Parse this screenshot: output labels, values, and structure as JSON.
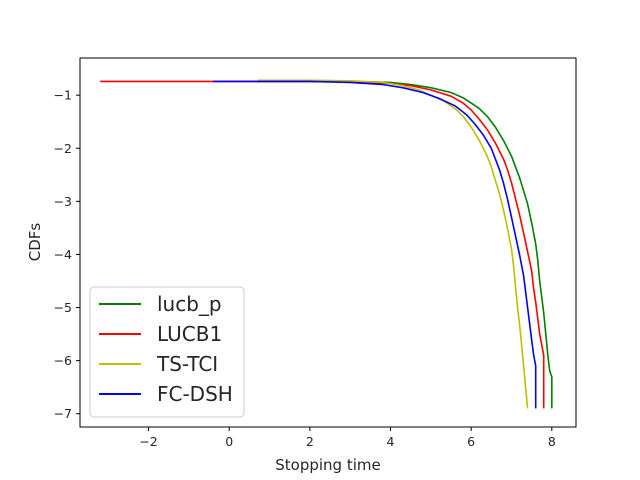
{
  "chart_data": {
    "type": "line",
    "title": "",
    "xlabel": "Stopping time",
    "ylabel": "CDFs",
    "xlim": [
      -3.7,
      8.6
    ],
    "ylim": [
      -7.25,
      -0.3
    ],
    "xticks": [
      -2,
      0,
      2,
      4,
      6,
      8
    ],
    "yticks": [
      -1,
      -2,
      -3,
      -4,
      -5,
      -6,
      -7
    ],
    "grid": false,
    "legend_position": "lower-left",
    "series": [
      {
        "name": "lucb_p",
        "color": "#008000",
        "x": [
          0.7,
          2.0,
          3.0,
          4.0,
          4.5,
          5.0,
          5.5,
          5.8,
          6.0,
          6.2,
          6.4,
          6.6,
          6.8,
          7.0,
          7.1,
          7.2,
          7.3,
          7.4,
          7.5,
          7.6,
          7.65,
          7.7,
          7.75,
          7.8,
          7.85,
          7.9,
          7.95,
          8.0,
          8.0
        ],
        "y": [
          -0.74,
          -0.74,
          -0.74,
          -0.76,
          -0.8,
          -0.86,
          -0.95,
          -1.05,
          -1.15,
          -1.25,
          -1.4,
          -1.6,
          -1.85,
          -2.15,
          -2.35,
          -2.55,
          -2.8,
          -3.05,
          -3.4,
          -3.8,
          -4.1,
          -4.5,
          -4.8,
          -5.1,
          -5.5,
          -5.9,
          -6.2,
          -6.3,
          -6.9
        ]
      },
      {
        "name": "LUCB1",
        "color": "#ff0000",
        "x": [
          -3.2,
          0.0,
          2.0,
          3.0,
          4.0,
          4.5,
          5.0,
          5.5,
          5.8,
          6.0,
          6.2,
          6.4,
          6.6,
          6.8,
          6.9,
          7.0,
          7.1,
          7.2,
          7.3,
          7.4,
          7.5,
          7.55,
          7.6,
          7.65,
          7.7,
          7.75,
          7.8,
          7.8
        ],
        "y": [
          -0.74,
          -0.74,
          -0.74,
          -0.75,
          -0.78,
          -0.82,
          -0.9,
          -1.02,
          -1.15,
          -1.28,
          -1.45,
          -1.65,
          -1.9,
          -2.2,
          -2.4,
          -2.65,
          -2.95,
          -3.25,
          -3.6,
          -3.95,
          -4.3,
          -4.65,
          -4.9,
          -5.2,
          -5.5,
          -5.7,
          -5.9,
          -6.9
        ]
      },
      {
        "name": "TS-TCI",
        "color": "#bfbf00",
        "x": [
          0.7,
          2.0,
          3.0,
          3.8,
          4.3,
          4.7,
          5.0,
          5.3,
          5.6,
          5.8,
          6.0,
          6.2,
          6.4,
          6.5,
          6.6,
          6.7,
          6.8,
          6.9,
          7.0,
          7.05,
          7.1,
          7.15,
          7.2,
          7.25,
          7.3,
          7.35,
          7.4
        ],
        "y": [
          -0.72,
          -0.72,
          -0.73,
          -0.76,
          -0.82,
          -0.9,
          -1.0,
          -1.1,
          -1.25,
          -1.4,
          -1.6,
          -1.85,
          -2.15,
          -2.35,
          -2.6,
          -2.85,
          -3.15,
          -3.5,
          -3.9,
          -4.2,
          -4.6,
          -5.0,
          -5.3,
          -5.7,
          -6.1,
          -6.5,
          -6.9
        ]
      },
      {
        "name": "FC-DSH",
        "color": "#0000ff",
        "x": [
          -0.4,
          1.0,
          2.0,
          3.0,
          3.8,
          4.3,
          4.8,
          5.2,
          5.6,
          5.9,
          6.1,
          6.3,
          6.5,
          6.6,
          6.7,
          6.8,
          6.9,
          7.0,
          7.1,
          7.2,
          7.3,
          7.35,
          7.4,
          7.45,
          7.5,
          7.55,
          7.6,
          7.6
        ],
        "y": [
          -0.74,
          -0.74,
          -0.74,
          -0.76,
          -0.8,
          -0.86,
          -0.95,
          -1.06,
          -1.2,
          -1.38,
          -1.55,
          -1.75,
          -2.0,
          -2.2,
          -2.4,
          -2.65,
          -2.95,
          -3.3,
          -3.65,
          -4.0,
          -4.4,
          -4.7,
          -5.0,
          -5.3,
          -5.6,
          -5.9,
          -6.1,
          -6.9
        ]
      }
    ]
  }
}
